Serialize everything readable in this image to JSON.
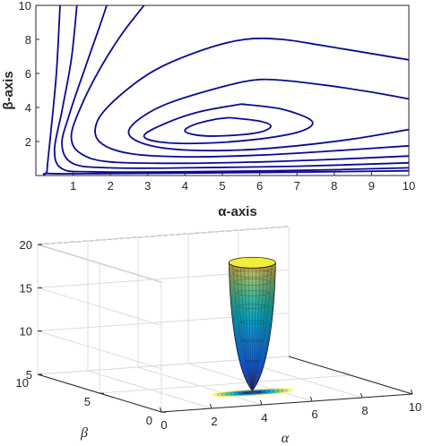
{
  "chart_data": [
    {
      "type": "contour",
      "title": "",
      "xlabel": "α-axis",
      "ylabel": "β-axis",
      "xlim": [
        0,
        10
      ],
      "ylim": [
        0,
        10
      ],
      "xticks": [
        "1",
        "2",
        "3",
        "4",
        "5",
        "6",
        "7",
        "8",
        "9",
        "10"
      ],
      "yticks": [
        "2",
        "4",
        "6",
        "8",
        "10"
      ],
      "grid": false,
      "line_color": "#0a0a96",
      "contours": [
        {
          "level": 1,
          "points": [
            [
              5.2,
              3.4
            ],
            [
              6.0,
              3.2
            ],
            [
              6.3,
              2.9
            ],
            [
              6.0,
              2.55
            ],
            [
              5.2,
              2.35
            ],
            [
              4.4,
              2.35
            ],
            [
              4.0,
              2.6
            ],
            [
              4.2,
              2.95
            ],
            [
              4.8,
              3.3
            ],
            [
              5.2,
              3.4
            ]
          ]
        },
        {
          "level": 2,
          "points": [
            [
              5.5,
              4.2
            ],
            [
              6.6,
              3.9
            ],
            [
              7.4,
              3.2
            ],
            [
              7.1,
              2.6
            ],
            [
              6.0,
              2.15
            ],
            [
              4.5,
              1.9
            ],
            [
              3.4,
              1.95
            ],
            [
              2.9,
              2.3
            ],
            [
              3.3,
              2.9
            ],
            [
              4.3,
              3.7
            ],
            [
              5.5,
              4.2
            ]
          ]
        },
        {
          "level": 3,
          "points": [
            [
              10.0,
              2.7
            ],
            [
              8.5,
              2.15
            ],
            [
              7.0,
              1.75
            ],
            [
              5.5,
              1.5
            ],
            [
              4.0,
              1.5
            ],
            [
              3.0,
              1.8
            ],
            [
              2.5,
              2.4
            ],
            [
              2.7,
              3.2
            ],
            [
              3.5,
              4.2
            ],
            [
              4.8,
              5.1
            ],
            [
              5.8,
              5.6
            ],
            [
              6.6,
              5.6
            ],
            [
              7.8,
              5.3
            ],
            [
              9.0,
              4.9
            ],
            [
              10.0,
              4.5
            ]
          ]
        },
        {
          "level": 4,
          "points": [
            [
              10.0,
              1.75
            ],
            [
              8.0,
              1.45
            ],
            [
              6.0,
              1.2
            ],
            [
              4.0,
              1.1
            ],
            [
              2.5,
              1.3
            ],
            [
              1.7,
              2.0
            ],
            [
              1.65,
              3.2
            ],
            [
              2.2,
              4.6
            ],
            [
              3.2,
              6.2
            ],
            [
              4.5,
              7.4
            ],
            [
              5.6,
              8.0
            ],
            [
              6.6,
              8.0
            ],
            [
              7.8,
              7.6
            ],
            [
              10.0,
              6.8
            ]
          ]
        },
        {
          "level": 5,
          "points": [
            [
              10.0,
              1.15
            ],
            [
              8.0,
              0.95
            ],
            [
              6.0,
              0.8
            ],
            [
              4.0,
              0.72
            ],
            [
              2.0,
              0.8
            ],
            [
              1.2,
              1.3
            ],
            [
              0.95,
              2.3
            ],
            [
              1.2,
              4.0
            ],
            [
              1.7,
              6.2
            ],
            [
              2.3,
              8.3
            ],
            [
              2.9,
              10.0
            ]
          ]
        },
        {
          "level": 6,
          "points": [
            [
              10.0,
              0.75
            ],
            [
              7.0,
              0.55
            ],
            [
              4.0,
              0.45
            ],
            [
              2.0,
              0.45
            ],
            [
              1.0,
              0.7
            ],
            [
              0.7,
              1.8
            ],
            [
              0.9,
              3.6
            ],
            [
              1.3,
              6.2
            ],
            [
              1.7,
              8.7
            ],
            [
              1.9,
              10.0
            ]
          ]
        },
        {
          "level": 7,
          "points": [
            [
              10.0,
              0.45
            ],
            [
              7.0,
              0.3
            ],
            [
              4.0,
              0.22
            ],
            [
              1.5,
              0.22
            ],
            [
              0.7,
              0.4
            ],
            [
              0.5,
              1.5
            ],
            [
              0.7,
              3.8
            ],
            [
              0.95,
              6.8
            ],
            [
              1.1,
              10.0
            ]
          ]
        },
        {
          "level": 8,
          "points": [
            [
              10.0,
              0.28
            ],
            [
              6.0,
              0.18
            ],
            [
              2.0,
              0.12
            ],
            [
              0.35,
              0.12
            ],
            [
              0.3,
              0.3
            ],
            [
              0.4,
              2.5
            ],
            [
              0.55,
              6.0
            ],
            [
              0.65,
              10.0
            ]
          ]
        }
      ]
    },
    {
      "type": "surface3d",
      "title": "",
      "xlabel": "α",
      "ylabel": "β",
      "zlabel": "",
      "xlim": [
        0,
        10
      ],
      "ylim": [
        0,
        10
      ],
      "zlim": [
        5,
        20
      ],
      "xticks": [
        "0",
        "2",
        "4",
        "6",
        "8",
        "10"
      ],
      "yticks": [
        "0",
        "5",
        "10"
      ],
      "zticks": [
        "5",
        "10",
        "15",
        "20"
      ],
      "grid": true,
      "colormap": "parula",
      "surface": {
        "x_center": 5.0,
        "y_center": 2.8,
        "z_min": 5.2,
        "z_max": 20
      }
    }
  ]
}
